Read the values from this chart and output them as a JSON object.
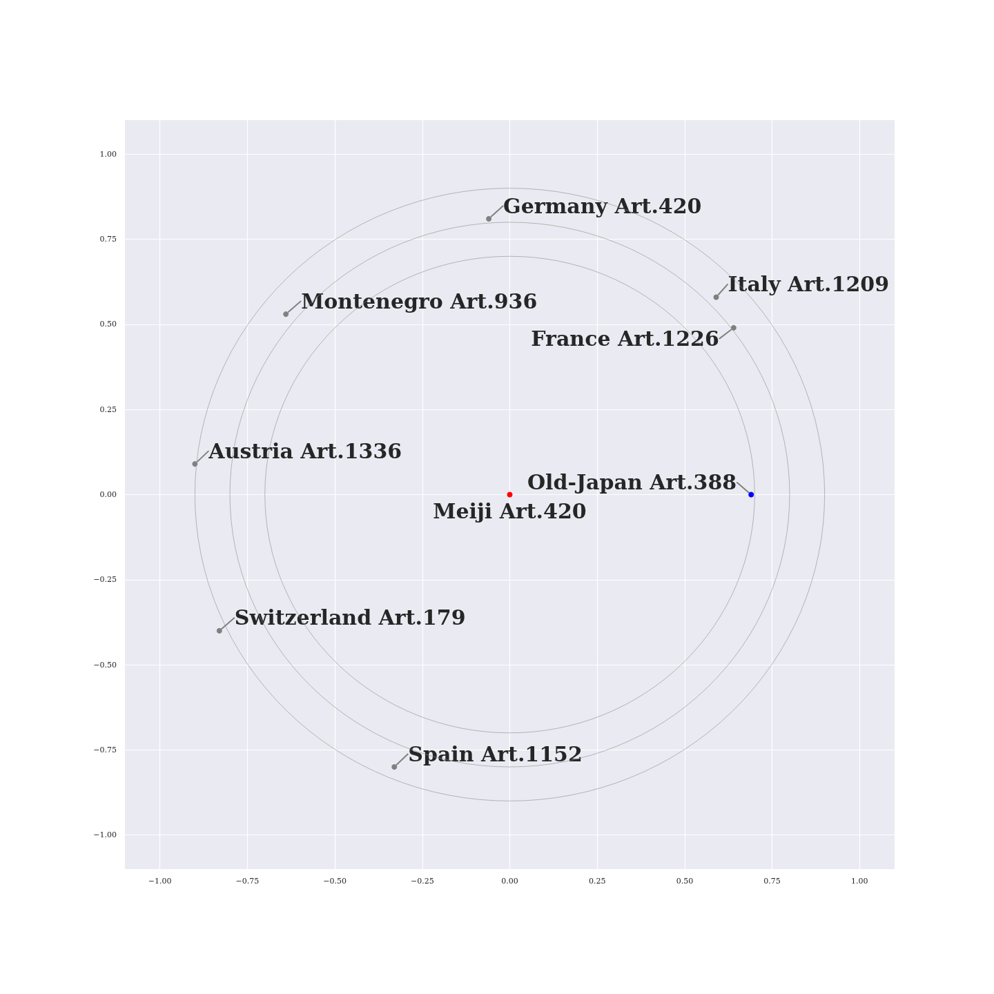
{
  "chart_data": {
    "type": "scatter",
    "xlim": [
      -1.1,
      1.1
    ],
    "ylim": [
      -1.1,
      1.1
    ],
    "xticks": [
      {
        "value": -1,
        "label": "−1.00"
      },
      {
        "value": -0.75,
        "label": "−0.75"
      },
      {
        "value": -0.5,
        "label": "−0.50"
      },
      {
        "value": -0.25,
        "label": "−0.25"
      },
      {
        "value": 0,
        "label": "0.00"
      },
      {
        "value": 0.25,
        "label": "0.25"
      },
      {
        "value": 0.5,
        "label": "0.50"
      },
      {
        "value": 0.75,
        "label": "0.75"
      },
      {
        "value": 1,
        "label": "1.00"
      }
    ],
    "yticks": [
      {
        "value": -1,
        "label": "−1.00"
      },
      {
        "value": -0.75,
        "label": "−0.75"
      },
      {
        "value": -0.5,
        "label": "−0.50"
      },
      {
        "value": -0.25,
        "label": "−0.25"
      },
      {
        "value": 0,
        "label": "0.00"
      },
      {
        "value": 0.25,
        "label": "0.25"
      },
      {
        "value": 0.5,
        "label": "0.50"
      },
      {
        "value": 0.75,
        "label": "0.75"
      },
      {
        "value": 1,
        "label": "1.00"
      }
    ],
    "grid": true,
    "marker": "circle",
    "x": [
      0,
      0.69,
      -0.06,
      0.59,
      0.64,
      -0.64,
      -0.9,
      -0.83,
      -0.33
    ],
    "values": [
      0,
      0,
      0.81,
      0.58,
      0.49,
      0.53,
      0.09,
      -0.4,
      -0.8
    ],
    "colors": [
      "#ff0000",
      "#0000ff",
      "#808080",
      "#808080",
      "#808080",
      "#808080",
      "#808080",
      "#808080",
      "#808080"
    ],
    "annotations": [
      {
        "text": "Meiji Art.420",
        "x": 0,
        "y": 0
      },
      {
        "text": "Old-Japan Art.388",
        "x": 0.69,
        "y": 0
      },
      {
        "text": "Germany Art.420",
        "x": -0.06,
        "y": 0.81
      },
      {
        "text": "Italy Art.1209",
        "x": 0.59,
        "y": 0.58
      },
      {
        "text": "France Art.1226",
        "x": 0.64,
        "y": 0.49
      },
      {
        "text": "Montenegro Art.936",
        "x": -0.64,
        "y": 0.53
      },
      {
        "text": "Austria Art.1336",
        "x": -0.9,
        "y": 0.09
      },
      {
        "text": "Switzerland Art.179",
        "x": -0.83,
        "y": -0.4
      },
      {
        "text": "Spain Art.1152",
        "x": -0.33,
        "y": -0.8
      }
    ]
  }
}
